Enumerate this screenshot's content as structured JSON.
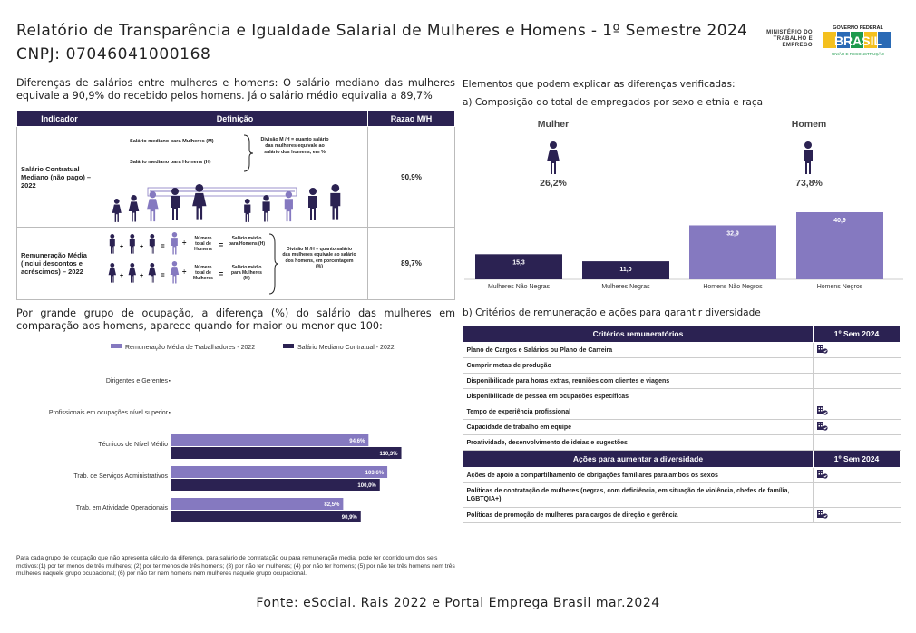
{
  "header": {
    "title": "Relatório de Transparência e Igualdade Salarial de Mulheres e Homens - 1º Semestre 2024",
    "cnpj": "CNPJ: 07046041000168",
    "ministry_logo": "MINISTÉRIO DO TRABALHO E EMPREGO",
    "gov_logo_top": "GOVERNO FEDERAL",
    "gov_logo_main": "BRASIL",
    "gov_logo_bottom": "UNIÃO E RECONSTRUÇÃO"
  },
  "intro": "Diferenças de salários entre mulheres e homens: O salário mediano das mulheres equivale a 90,9% do recebido pelos homens. Já o salário médio equivalia a 89,7%",
  "indicators": {
    "headers": [
      "Indicador",
      "Definição",
      "Razao M/H"
    ],
    "rows": [
      {
        "name": "Salário Contratual Mediano (não pago) – 2022",
        "value": "90,9%",
        "def": {
          "women_label": "Salário mediano para Mulheres (M)",
          "men_label": "Salário mediano para Homens (H)",
          "division": "Divisão M /H = quanto salário das mulheres equivale ao salário dos homens, em %"
        }
      },
      {
        "name": "Remuneração Média (inclui descontos e acréscimos) – 2022",
        "value": "89,7%",
        "def": {
          "men_count": "Número total de Homens",
          "men_avg": "Salário médio para Homens (H)",
          "women_count": "Número total de Mulheres",
          "women_avg": "Salário médio para Mulheres (M)",
          "division": "Divisão M /H = quanto salário das mulheres equivale ao salário dos homens, em porcentagem (%)"
        }
      }
    ]
  },
  "occupation_text": "Por grande grupo de ocupação, a diferença (%) do salário das mulheres em comparação aos homens, aparece quando for maior ou menor que 100:",
  "chart_data": [
    {
      "type": "bar",
      "orientation": "horizontal",
      "categories": [
        "Dirigentes e Gerentes",
        "Profissionais em ocupações nível superior",
        "Técnicos de Nível Médio",
        "Trab. de Serviços Administrativos",
        "Trab. em Atividade Operacionais"
      ],
      "series": [
        {
          "name": "Remuneração Média de Trabalhadores - 2022",
          "values": [
            null,
            null,
            94.6,
            103.6,
            82.5
          ],
          "labels": [
            "",
            "",
            "94,6%",
            "103,6%",
            "82,5%"
          ],
          "color": "#8579c0"
        },
        {
          "name": "Salário Mediano Contratual - 2022",
          "values": [
            null,
            null,
            110.3,
            100.0,
            90.9
          ],
          "labels": [
            "",
            "",
            "110,3%",
            "100,0%",
            "90,9%"
          ],
          "color": "#2b2252"
        }
      ],
      "legend": "top"
    },
    {
      "type": "bar",
      "categories": [
        "Mulheres Não Negras",
        "Mulheres Negras",
        "Homens Não Negros",
        "Homens Negros"
      ],
      "values": [
        15.3,
        11.0,
        32.9,
        40.9
      ],
      "labels": [
        "15,3",
        "11,0",
        "32,9",
        "40,9"
      ],
      "colors": [
        "#2b2252",
        "#2b2252",
        "#8579c0",
        "#8579c0"
      ]
    }
  ],
  "footnote": "Para cada grupo de ocupação que não apresenta cálculo da diferença, para salário de contratação ou para remuneração média, pode ter ocorrido um dos seis motivos:(1) por ter menos de três mulheres; (2) por ter menos de três homens; (3) por não ter mulheres; (4) por não ter homens; (5) por não ter três homens nem três mulheres naquele grupo ocupacional; (6) por não ter nem homens nem mulheres naquele grupo ocupacional.",
  "source": "Fonte: eSocial. Rais 2022 e Portal Emprega Brasil mar.2024",
  "right": {
    "elements_title": "Elementos que podem explicar as diferenças verificadas:",
    "sub_a": "a) Composição do total de empregados por sexo e etnia e raça",
    "woman_label": "Mulher",
    "woman_pct": "26,2%",
    "man_label": "Homem",
    "man_pct": "73,8%",
    "sub_b": "b) Critérios de remuneração e ações para garantir diversidade"
  },
  "criteria": {
    "header": "Critérios remuneratórios",
    "col": "1º Sem 2024",
    "rows": [
      {
        "label": "Plano de Cargos e Salários ou Plano de Carreira",
        "check": true
      },
      {
        "label": "Cumprir metas de produção",
        "check": false
      },
      {
        "label": "Disponibilidade para horas extras, reuniões com clientes e viagens",
        "check": false
      },
      {
        "label": "Disponibilidade de pessoa em ocupações específicas",
        "check": false
      },
      {
        "label": "Tempo de experiência profissional",
        "check": true
      },
      {
        "label": "Capacidade de trabalho em equipe",
        "check": true
      },
      {
        "label": "Proatividade, desenvolvimento de ideias e sugestões",
        "check": false
      }
    ]
  },
  "actions": {
    "header": "Ações para aumentar a diversidade",
    "col": "1º Sem 2024",
    "rows": [
      {
        "label": "Ações de apoio a compartilhamento de obrigações familiares para ambos os sexos",
        "check": true
      },
      {
        "label": "Políticas de contratação de mulheres (negras, com deficiência, em situação de violência, chefes de família, LGBTQIA+)",
        "check": false
      },
      {
        "label": "Políticas de promoção de mulheres para cargos de direção e gerência",
        "check": true
      }
    ]
  }
}
